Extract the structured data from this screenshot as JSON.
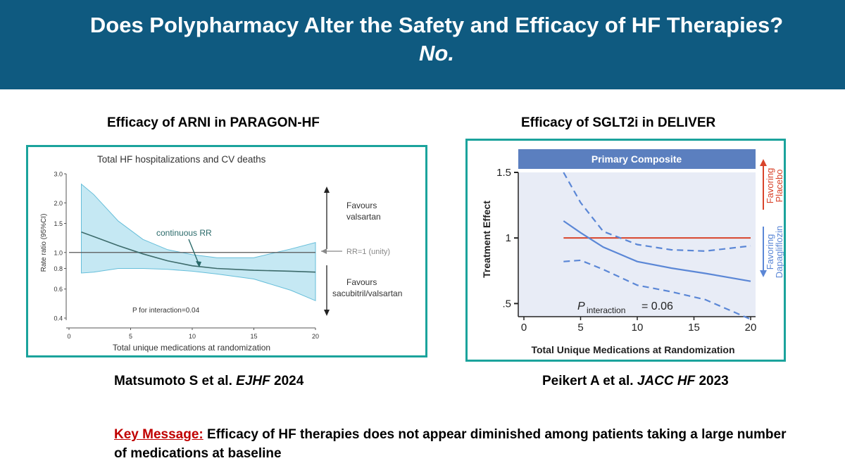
{
  "slide": {
    "title_line1": "Does Polypharmacy Alter the Safety and Efficacy of HF Therapies?",
    "title_line2": "No."
  },
  "left_panel": {
    "heading": "Efficacy of ARNI in PARAGON-HF",
    "citation_authors": "Matsumoto S et al.",
    "citation_journal": "EJHF",
    "citation_year": "2024"
  },
  "right_panel": {
    "heading": "Efficacy of SGLT2i in DELIVER",
    "citation_authors": "Peikert A et al.",
    "citation_journal": "JACC HF",
    "citation_year": "2023"
  },
  "key_message": {
    "label": "Key Message:",
    "text": "Efficacy of HF therapies does not appear diminished among patients taking a large number of medications at baseline"
  },
  "colors": {
    "banner": "#0f5a80",
    "frame": "#1ba39c",
    "key_label": "#c00000"
  },
  "chart_data": [
    {
      "type": "line",
      "title": "Total HF hospitalizations and CV deaths",
      "xlabel": "Total unique medications at randomization",
      "ylabel": "Rate ratio (95%CI)",
      "xlim": [
        0,
        20
      ],
      "ylim": [
        0.4,
        3.0
      ],
      "y_scale": "log",
      "x_ticks": [
        "0",
        "5",
        "10",
        "15",
        "20"
      ],
      "y_ticks": [
        "0.4",
        "0.6",
        "0.8",
        "1.0",
        "1.5",
        "2.0",
        "3.0"
      ],
      "series": [
        {
          "name": "continuous RR",
          "x": [
            1,
            2,
            4,
            6,
            8,
            10,
            12,
            15,
            18,
            20
          ],
          "y": [
            1.33,
            1.25,
            1.1,
            0.98,
            0.89,
            0.83,
            0.8,
            0.78,
            0.77,
            0.76
          ],
          "lower": [
            0.75,
            0.76,
            0.8,
            0.8,
            0.79,
            0.77,
            0.74,
            0.69,
            0.59,
            0.51
          ],
          "upper": [
            2.6,
            2.25,
            1.55,
            1.2,
            1.04,
            0.97,
            0.93,
            0.93,
            1.05,
            1.15
          ]
        }
      ],
      "reference_line": {
        "y": 1.0,
        "label": "RR=1 (unity)"
      },
      "annotations": {
        "favours_top_line1": "Favours",
        "favours_top_line2": "valsartan",
        "favours_bottom_line1": "Favours",
        "favours_bottom_line2": "sacubitril/valsartan",
        "p_interaction": "P for interaction=0.04",
        "curve_label": "continuous RR"
      }
    },
    {
      "type": "line",
      "title": "Primary Composite",
      "xlabel": "Total Unique Medications at Randomization",
      "ylabel": "Treatment Effect",
      "xlim": [
        0,
        20
      ],
      "ylim": [
        0.4,
        1.5
      ],
      "x_ticks": [
        "0",
        "5",
        "10",
        "15",
        "20"
      ],
      "y_ticks": [
        "1.5",
        "1",
        ".5"
      ],
      "series": [
        {
          "name": "Treatment effect",
          "x": [
            3.5,
            5,
            7,
            10,
            13,
            16,
            20
          ],
          "y": [
            1.13,
            1.04,
            0.93,
            0.82,
            0.77,
            0.73,
            0.67
          ],
          "lower": [
            0.82,
            0.83,
            0.76,
            0.64,
            0.59,
            0.53,
            0.38
          ],
          "upper": [
            1.5,
            1.27,
            1.05,
            0.95,
            0.91,
            0.9,
            0.94
          ]
        }
      ],
      "reference_line": {
        "y": 1.0
      },
      "annotations": {
        "p_label": "P",
        "p_subscript": "interaction",
        "p_value": "= 0.06",
        "favoring_top_line1": "Favoring",
        "favoring_top_line2": "Placebo",
        "favoring_bottom_line1": "Favoring",
        "favoring_bottom_line2": "Dapagliflozin"
      }
    }
  ]
}
